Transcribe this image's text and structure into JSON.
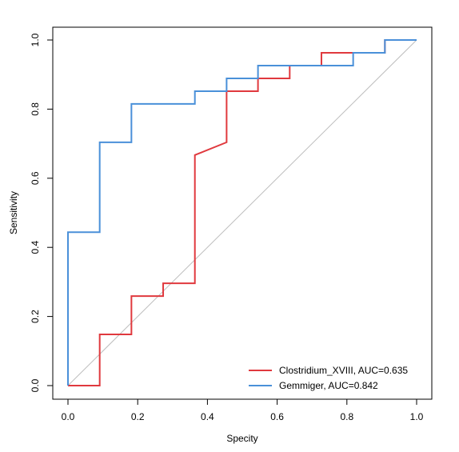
{
  "chart_data": {
    "type": "line",
    "title": "",
    "xlabel": "Specity",
    "ylabel": "Sensitivity",
    "xlim": [
      0,
      1
    ],
    "ylim": [
      0,
      1
    ],
    "x_ticks": [
      "0.0",
      "0.2",
      "0.4",
      "0.6",
      "0.8",
      "1.0"
    ],
    "y_ticks": [
      "0.0",
      "0.2",
      "0.4",
      "0.6",
      "0.8",
      "1.0"
    ],
    "grid": false,
    "legend_position": "bottom-right",
    "reference_line": {
      "from": [
        0,
        0
      ],
      "to": [
        1,
        1
      ],
      "color": "#bdbdbd"
    },
    "series": [
      {
        "name": "Clostridium_XVIII, AUC=0.635",
        "color": "#e0393e",
        "points": [
          [
            0,
            0
          ],
          [
            0.091,
            0
          ],
          [
            0.091,
            0.148
          ],
          [
            0.182,
            0.148
          ],
          [
            0.182,
            0.259
          ],
          [
            0.273,
            0.259
          ],
          [
            0.273,
            0.296
          ],
          [
            0.364,
            0.296
          ],
          [
            0.364,
            0.667
          ],
          [
            0.455,
            0.704
          ],
          [
            0.455,
            0.852
          ],
          [
            0.545,
            0.852
          ],
          [
            0.545,
            0.889
          ],
          [
            0.636,
            0.889
          ],
          [
            0.636,
            0.926
          ],
          [
            0.727,
            0.926
          ],
          [
            0.727,
            0.963
          ],
          [
            0.818,
            0.963
          ],
          [
            0.909,
            0.963
          ],
          [
            0.909,
            1.0
          ],
          [
            1.0,
            1.0
          ]
        ]
      },
      {
        "name": "Gemmiger, AUC=0.842",
        "color": "#4a90d9",
        "points": [
          [
            0,
            0
          ],
          [
            0,
            0.444
          ],
          [
            0.091,
            0.444
          ],
          [
            0.091,
            0.704
          ],
          [
            0.182,
            0.704
          ],
          [
            0.182,
            0.815
          ],
          [
            0.364,
            0.815
          ],
          [
            0.364,
            0.852
          ],
          [
            0.455,
            0.852
          ],
          [
            0.455,
            0.889
          ],
          [
            0.545,
            0.889
          ],
          [
            0.545,
            0.926
          ],
          [
            0.818,
            0.926
          ],
          [
            0.818,
            0.963
          ],
          [
            0.909,
            0.963
          ],
          [
            0.909,
            1.0
          ],
          [
            1.0,
            1.0
          ]
        ]
      }
    ]
  }
}
